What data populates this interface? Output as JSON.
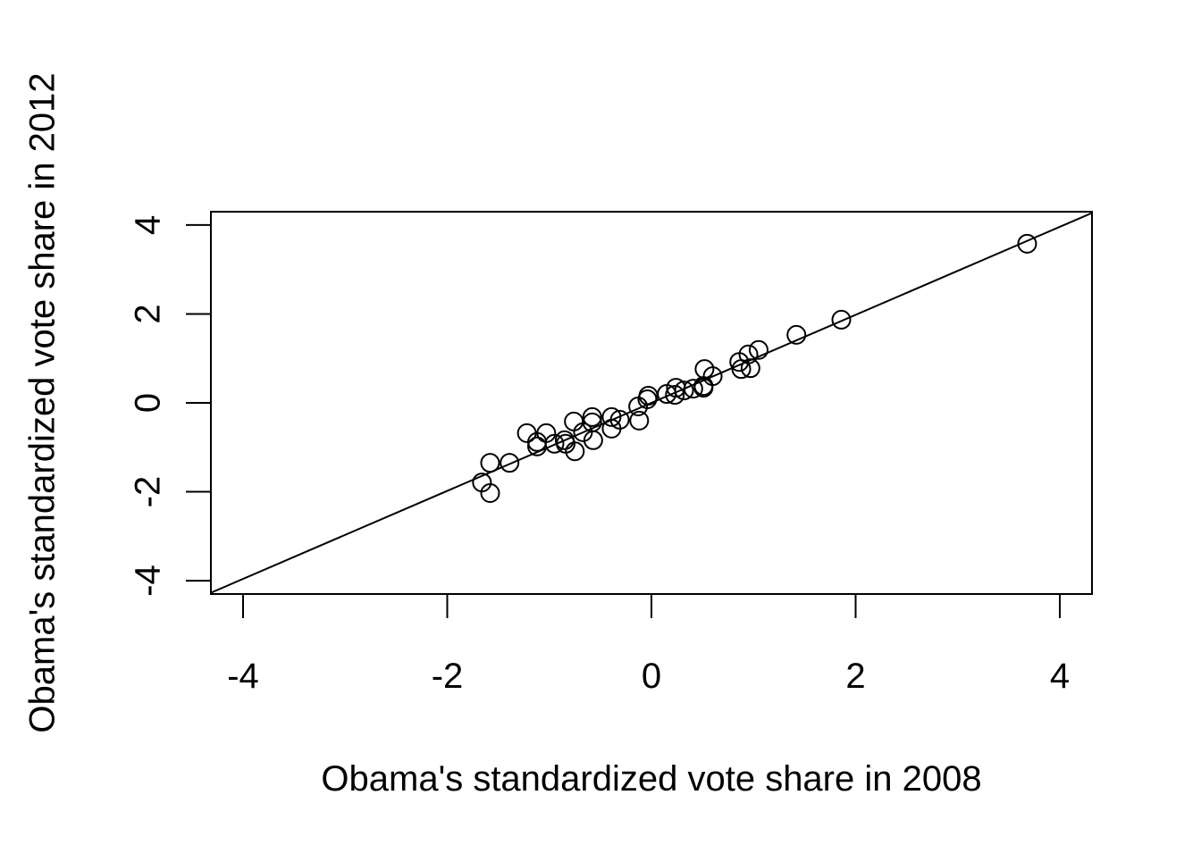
{
  "chart_data": {
    "type": "scatter",
    "x_label": "Obama's standardized vote share in 2008",
    "y_label": "Obama's standardized vote share in 2012",
    "x": [
      3.68,
      1.86,
      1.42,
      1.05,
      0.95,
      0.97,
      0.86,
      0.88,
      0.52,
      0.6,
      0.51,
      0.51,
      0.41,
      0.32,
      0.24,
      0.23,
      0.15,
      -0.03,
      -0.04,
      -0.13,
      -0.12,
      -0.31,
      -0.39,
      -0.39,
      -0.58,
      -0.58,
      -0.57,
      -0.67,
      -0.76,
      -0.75,
      -0.85,
      -0.84,
      -0.95,
      -1.03,
      -1.12,
      -1.12,
      -1.22,
      -1.39,
      -1.58,
      -1.58,
      -1.66
    ],
    "values": [
      3.58,
      1.87,
      1.53,
      1.19,
      1.09,
      0.78,
      0.92,
      0.76,
      0.76,
      0.6,
      0.38,
      0.34,
      0.32,
      0.28,
      0.34,
      0.18,
      0.2,
      0.16,
      0.08,
      -0.08,
      -0.4,
      -0.38,
      -0.32,
      -0.58,
      -0.32,
      -0.44,
      -0.84,
      -0.66,
      -0.42,
      -1.09,
      -0.84,
      -0.92,
      -0.92,
      -0.68,
      -0.98,
      -0.88,
      -0.68,
      -1.35,
      -1.35,
      -2.03,
      -1.79
    ],
    "color": "#000000",
    "line": {
      "intercept": 0,
      "slope": 0.99
    },
    "xlim": [
      -4.315,
      4.315
    ],
    "ylim": [
      -4.3,
      4.3
    ],
    "xticks": [
      -4,
      -2,
      0,
      2,
      4
    ],
    "yticks": [
      -4,
      -2,
      0,
      2,
      4
    ]
  }
}
